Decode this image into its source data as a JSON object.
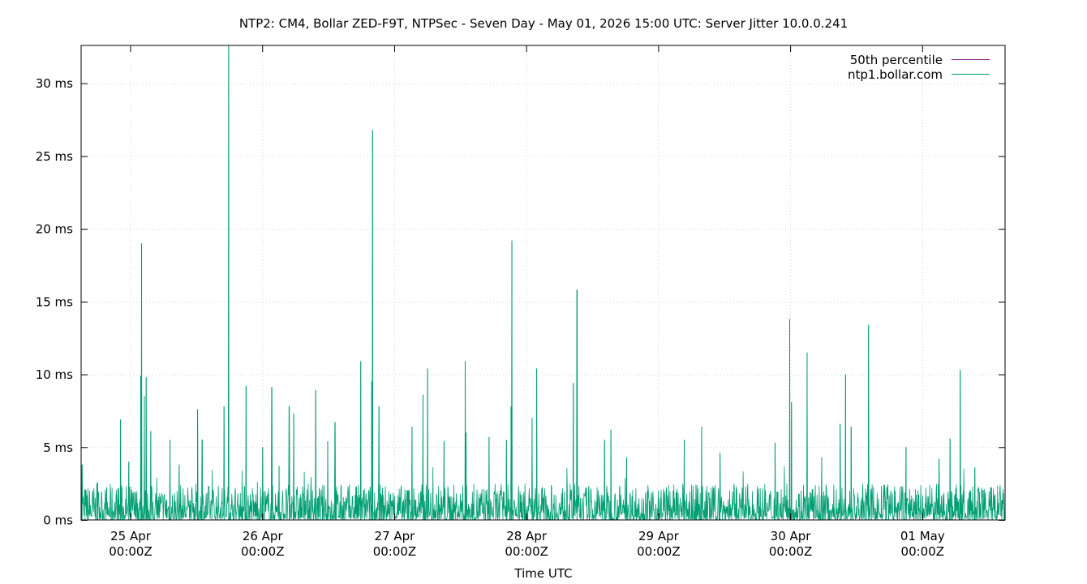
{
  "chart_data": {
    "type": "line",
    "title": "NTP2: CM4, Bollar ZED-F9T, NTPSec - Seven Day - May 01, 2026 15:00 UTC: Server Jitter 10.0.0.241",
    "xlabel": "Time UTC",
    "ylabel": "",
    "grid": true,
    "legend_position": "top-right",
    "x_range": [
      "2026-04-24T15:00Z",
      "2026-05-01T15:00Z"
    ],
    "ylim": [
      0,
      32.6
    ],
    "y_ticks": [
      {
        "value": 0,
        "label": "0 ms"
      },
      {
        "value": 5,
        "label": "5 ms"
      },
      {
        "value": 10,
        "label": "10 ms"
      },
      {
        "value": 15,
        "label": "15 ms"
      },
      {
        "value": 20,
        "label": "20 ms"
      },
      {
        "value": 25,
        "label": "25 ms"
      },
      {
        "value": 30,
        "label": "30 ms"
      }
    ],
    "x_ticks": [
      {
        "value": "2026-04-25T00:00Z",
        "line1": "25 Apr",
        "line2": "00:00Z"
      },
      {
        "value": "2026-04-26T00:00Z",
        "line1": "26 Apr",
        "line2": "00:00Z"
      },
      {
        "value": "2026-04-27T00:00Z",
        "line1": "27 Apr",
        "line2": "00:00Z"
      },
      {
        "value": "2026-04-28T00:00Z",
        "line1": "28 Apr",
        "line2": "00:00Z"
      },
      {
        "value": "2026-04-29T00:00Z",
        "line1": "29 Apr",
        "line2": "00:00Z"
      },
      {
        "value": "2026-04-30T00:00Z",
        "line1": "30 Apr",
        "line2": "00:00Z"
      },
      {
        "value": "2026-05-01T00:00Z",
        "line1": "01 May",
        "line2": "00:00Z"
      }
    ],
    "series": [
      {
        "name": "50th percentile",
        "color": "#8b1a89",
        "points": [
          [
            "2026-04-24T15:00Z",
            0.0
          ],
          [
            "2026-05-01T15:00Z",
            0.0
          ]
        ]
      },
      {
        "name": "ntp1.bollar.com",
        "color": "#009e73",
        "baseline_max_ms": 2.5,
        "spikes": [
          [
            "2026-04-24T15:10Z",
            3.8
          ],
          [
            "2026-04-24T18:00Z",
            2.6
          ],
          [
            "2026-04-24T22:10Z",
            6.9
          ],
          [
            "2026-04-24T23:40Z",
            4.0
          ],
          [
            "2026-04-25T01:50Z",
            9.9
          ],
          [
            "2026-04-25T02:00Z",
            19.0
          ],
          [
            "2026-04-25T02:30Z",
            8.5
          ],
          [
            "2026-04-25T02:50Z",
            9.8
          ],
          [
            "2026-04-25T03:40Z",
            6.1
          ],
          [
            "2026-04-25T07:10Z",
            5.5
          ],
          [
            "2026-04-25T08:50Z",
            3.8
          ],
          [
            "2026-04-25T12:10Z",
            7.6
          ],
          [
            "2026-04-25T13:00Z",
            5.5
          ],
          [
            "2026-04-25T17:00Z",
            7.8
          ],
          [
            "2026-04-25T17:50Z",
            32.6
          ],
          [
            "2026-04-25T21:00Z",
            9.2
          ],
          [
            "2026-04-26T00:00Z",
            5.0
          ],
          [
            "2026-04-26T01:40Z",
            9.1
          ],
          [
            "2026-04-26T03:00Z",
            3.7
          ],
          [
            "2026-04-26T04:50Z",
            7.8
          ],
          [
            "2026-04-26T05:40Z",
            7.3
          ],
          [
            "2026-04-26T09:40Z",
            8.9
          ],
          [
            "2026-04-26T11:50Z",
            5.4
          ],
          [
            "2026-04-26T13:10Z",
            6.7
          ],
          [
            "2026-04-26T17:50Z",
            10.9
          ],
          [
            "2026-04-26T19:50Z",
            9.5
          ],
          [
            "2026-04-26T20:00Z",
            26.8
          ],
          [
            "2026-04-26T21:10Z",
            7.8
          ],
          [
            "2026-04-27T03:10Z",
            6.4
          ],
          [
            "2026-04-27T05:10Z",
            8.6
          ],
          [
            "2026-04-27T06:00Z",
            10.4
          ],
          [
            "2026-04-27T09:00Z",
            5.4
          ],
          [
            "2026-04-27T12:50Z",
            10.9
          ],
          [
            "2026-04-27T13:00Z",
            6.0
          ],
          [
            "2026-04-27T17:10Z",
            5.7
          ],
          [
            "2026-04-27T20:20Z",
            5.5
          ],
          [
            "2026-04-27T21:10Z",
            7.8
          ],
          [
            "2026-04-27T21:20Z",
            19.2
          ],
          [
            "2026-04-28T01:00Z",
            7.0
          ],
          [
            "2026-04-28T01:50Z",
            10.4
          ],
          [
            "2026-04-28T08:30Z",
            9.4
          ],
          [
            "2026-04-28T09:10Z",
            15.8
          ],
          [
            "2026-04-28T14:10Z",
            5.5
          ],
          [
            "2026-04-28T15:20Z",
            6.2
          ],
          [
            "2026-04-28T18:10Z",
            4.3
          ],
          [
            "2026-04-29T04:40Z",
            5.5
          ],
          [
            "2026-04-29T07:50Z",
            6.4
          ],
          [
            "2026-04-29T11:10Z",
            4.6
          ],
          [
            "2026-04-29T21:10Z",
            5.3
          ],
          [
            "2026-04-29T23:50Z",
            13.8
          ],
          [
            "2026-04-30T00:10Z",
            8.1
          ],
          [
            "2026-04-30T03:00Z",
            11.5
          ],
          [
            "2026-04-30T05:40Z",
            4.3
          ],
          [
            "2026-04-30T09:00Z",
            6.6
          ],
          [
            "2026-04-30T10:00Z",
            10.0
          ],
          [
            "2026-04-30T11:00Z",
            6.4
          ],
          [
            "2026-04-30T14:10Z",
            13.4
          ],
          [
            "2026-04-30T21:00Z",
            5.0
          ],
          [
            "2026-05-01T03:00Z",
            4.2
          ],
          [
            "2026-05-01T05:00Z",
            5.6
          ],
          [
            "2026-05-01T06:50Z",
            10.3
          ],
          [
            "2026-05-01T09:30Z",
            3.6
          ]
        ]
      }
    ]
  }
}
